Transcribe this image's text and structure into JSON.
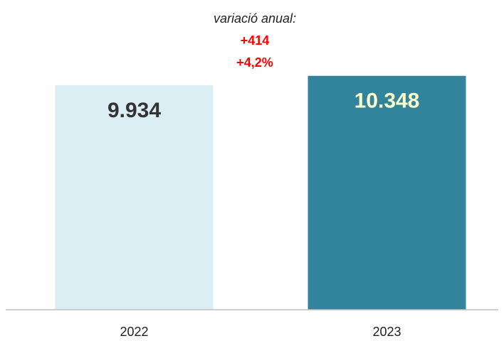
{
  "chart_data": {
    "type": "bar",
    "annotations": [
      "variació anual:",
      "+414",
      "+4,2%"
    ],
    "categories": [
      "2022",
      "2023"
    ],
    "values": [
      9934,
      10348
    ],
    "value_labels": [
      "9.934",
      "10.348"
    ],
    "colors": [
      "#daeef3",
      "#31849b"
    ],
    "value_label_colors": [
      "#333333",
      "#ffffcc"
    ],
    "annotation_color": "#ff0000",
    "ylim": [
      0,
      11000
    ]
  }
}
